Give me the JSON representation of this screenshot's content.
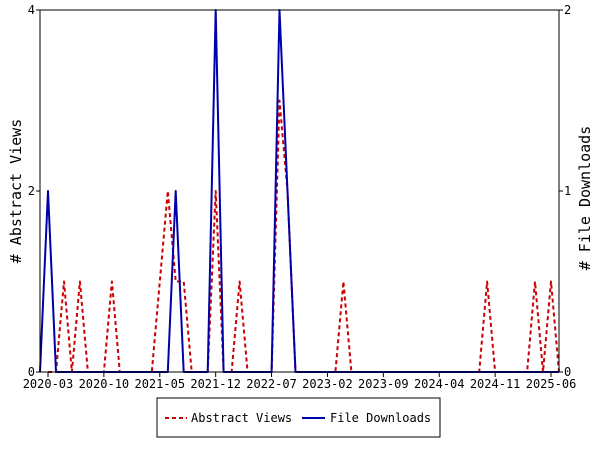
{
  "chart_data": {
    "type": "line",
    "title": "",
    "y_left_label": "# Abstract Views",
    "y_right_label": "# File Downloads",
    "y_left_range": [
      0,
      4
    ],
    "y_right_range": [
      0,
      2
    ],
    "y_left_ticks": [
      "0",
      "2",
      "4"
    ],
    "y_right_ticks": [
      "0",
      "1",
      "2"
    ],
    "x_range": [
      "2020-02",
      "2025-07"
    ],
    "x_ticks": [
      "2020-03",
      "2020-10",
      "2021-05",
      "2021-12",
      "2022-07",
      "2023-02",
      "2023-09",
      "2024-04",
      "2024-11",
      "2025-06"
    ],
    "grid": false,
    "legend_position": "bottom",
    "series": [
      {
        "name": "Abstract Views",
        "axis": "left",
        "color": "#cc0000",
        "dash": true,
        "points": [
          [
            "2020-03",
            0
          ],
          [
            "2020-04",
            0
          ],
          [
            "2020-05",
            1
          ],
          [
            "2020-06",
            0
          ],
          [
            "2020-07",
            1
          ],
          [
            "2020-08",
            0
          ],
          [
            "2020-09",
            0
          ],
          [
            "2020-10",
            0
          ],
          [
            "2020-11",
            1
          ],
          [
            "2020-12",
            0
          ],
          [
            "2021-01",
            0
          ],
          [
            "2021-02",
            0
          ],
          [
            "2021-03",
            0
          ],
          [
            "2021-04",
            0
          ],
          [
            "2021-05",
            1
          ],
          [
            "2021-06",
            2
          ],
          [
            "2021-07",
            1
          ],
          [
            "2021-08",
            1
          ],
          [
            "2021-09",
            0
          ],
          [
            "2021-10",
            0
          ],
          [
            "2021-11",
            0
          ],
          [
            "2021-12",
            2
          ],
          [
            "2022-01",
            0
          ],
          [
            "2022-02",
            0
          ],
          [
            "2022-03",
            1
          ],
          [
            "2022-04",
            0
          ],
          [
            "2022-05",
            0
          ],
          [
            "2022-06",
            0
          ],
          [
            "2022-07",
            0
          ],
          [
            "2022-08",
            3
          ],
          [
            "2022-09",
            2
          ],
          [
            "2022-10",
            0
          ],
          [
            "2022-11",
            0
          ],
          [
            "2022-12",
            0
          ],
          [
            "2023-01",
            0
          ],
          [
            "2023-02",
            0
          ],
          [
            "2023-03",
            0
          ],
          [
            "2023-04",
            1
          ],
          [
            "2023-05",
            0
          ],
          [
            "2023-06",
            0
          ],
          [
            "2023-07",
            0
          ],
          [
            "2023-08",
            0
          ],
          [
            "2023-09",
            0
          ],
          [
            "2023-10",
            0
          ],
          [
            "2023-11",
            0
          ],
          [
            "2023-12",
            0
          ],
          [
            "2024-01",
            0
          ],
          [
            "2024-02",
            0
          ],
          [
            "2024-03",
            0
          ],
          [
            "2024-04",
            0
          ],
          [
            "2024-05",
            0
          ],
          [
            "2024-06",
            0
          ],
          [
            "2024-07",
            0
          ],
          [
            "2024-08",
            0
          ],
          [
            "2024-09",
            0
          ],
          [
            "2024-10",
            1
          ],
          [
            "2024-11",
            0
          ],
          [
            "2024-12",
            0
          ],
          [
            "2025-01",
            0
          ],
          [
            "2025-02",
            0
          ],
          [
            "2025-03",
            0
          ],
          [
            "2025-04",
            1
          ],
          [
            "2025-05",
            0
          ],
          [
            "2025-06",
            1
          ],
          [
            "2025-07",
            0
          ]
        ]
      },
      {
        "name": "File Downloads",
        "axis": "right",
        "color": "#0000aa",
        "dash": false,
        "points": [
          [
            "2020-02",
            0
          ],
          [
            "2020-03",
            1
          ],
          [
            "2020-04",
            0
          ],
          [
            "2020-05",
            0
          ],
          [
            "2020-06",
            0
          ],
          [
            "2020-07",
            0
          ],
          [
            "2020-08",
            0
          ],
          [
            "2020-09",
            0
          ],
          [
            "2020-10",
            0
          ],
          [
            "2020-11",
            0
          ],
          [
            "2020-12",
            0
          ],
          [
            "2021-01",
            0
          ],
          [
            "2021-02",
            0
          ],
          [
            "2021-03",
            0
          ],
          [
            "2021-04",
            0
          ],
          [
            "2021-05",
            0
          ],
          [
            "2021-06",
            0
          ],
          [
            "2021-07",
            1
          ],
          [
            "2021-08",
            0
          ],
          [
            "2021-09",
            0
          ],
          [
            "2021-10",
            0
          ],
          [
            "2021-11",
            0
          ],
          [
            "2021-12",
            2
          ],
          [
            "2022-01",
            0
          ],
          [
            "2022-02",
            0
          ],
          [
            "2022-03",
            0
          ],
          [
            "2022-04",
            0
          ],
          [
            "2022-05",
            0
          ],
          [
            "2022-06",
            0
          ],
          [
            "2022-07",
            0
          ],
          [
            "2022-08",
            2
          ],
          [
            "2022-09",
            1
          ],
          [
            "2022-10",
            0
          ],
          [
            "2022-11",
            0
          ],
          [
            "2022-12",
            0
          ],
          [
            "2023-01",
            0
          ],
          [
            "2023-02",
            0
          ],
          [
            "2023-03",
            0
          ],
          [
            "2023-04",
            0
          ],
          [
            "2023-05",
            0
          ],
          [
            "2023-06",
            0
          ],
          [
            "2023-07",
            0
          ],
          [
            "2023-08",
            0
          ],
          [
            "2023-09",
            0
          ],
          [
            "2023-10",
            0
          ],
          [
            "2023-11",
            0
          ],
          [
            "2023-12",
            0
          ],
          [
            "2024-01",
            0
          ],
          [
            "2024-02",
            0
          ],
          [
            "2024-03",
            0
          ],
          [
            "2024-04",
            0
          ],
          [
            "2024-05",
            0
          ],
          [
            "2024-06",
            0
          ],
          [
            "2024-07",
            0
          ],
          [
            "2024-08",
            0
          ],
          [
            "2024-09",
            0
          ],
          [
            "2024-10",
            0
          ],
          [
            "2024-11",
            0
          ],
          [
            "2024-12",
            0
          ],
          [
            "2025-01",
            0
          ],
          [
            "2025-02",
            0
          ],
          [
            "2025-03",
            0
          ],
          [
            "2025-04",
            0
          ],
          [
            "2025-05",
            0
          ],
          [
            "2025-06",
            0
          ],
          [
            "2025-07",
            0
          ]
        ]
      }
    ]
  }
}
